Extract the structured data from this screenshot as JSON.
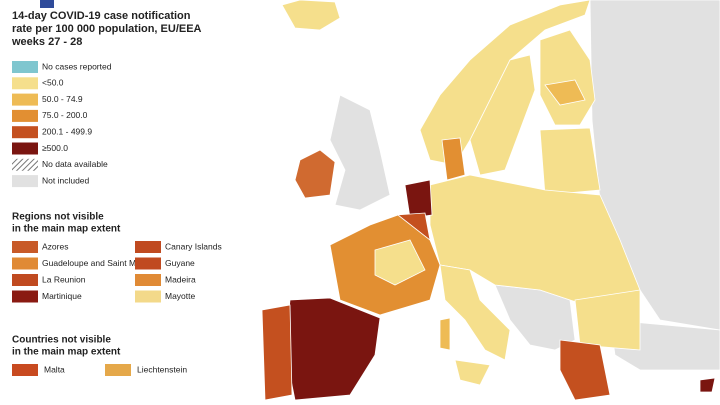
{
  "header": {
    "title_lines": [
      "14-day COVID-19 case notification",
      "rate per 100 000 population, EU/EEA",
      "weeks 27 - 28"
    ]
  },
  "legend": {
    "items": [
      {
        "label": "No cases reported",
        "color": "#7fc6cf"
      },
      {
        "label": "<50.0",
        "color": "#f5df8c"
      },
      {
        "label": "50.0 - 74.9",
        "color": "#eebb55"
      },
      {
        "label": "75.0 - 200.0",
        "color": "#e28f32"
      },
      {
        "label": "200.1 - 499.9",
        "color": "#c4501f"
      },
      {
        "label": "≥500.0",
        "color": "#7a1510"
      },
      {
        "label": "No data available",
        "color": "#999999",
        "pattern": "hatched"
      },
      {
        "label": "Not included",
        "color": "#e1e1e1"
      }
    ]
  },
  "regions": {
    "title_lines": [
      "Regions not visible",
      "in the main map extent"
    ],
    "items": [
      {
        "label": "Azores",
        "color": "#c85a28"
      },
      {
        "label": "Canary Islands",
        "color": "#c04a20"
      },
      {
        "label": "Guadeloupe and Saint Martin",
        "color": "#e08a35"
      },
      {
        "label": "Guyane",
        "color": "#c04a20"
      },
      {
        "label": "La Reunion",
        "color": "#c04a20"
      },
      {
        "label": "Madeira",
        "color": "#e08a35"
      },
      {
        "label": "Martinique",
        "color": "#8a1a12"
      },
      {
        "label": "Mayotte",
        "color": "#f3d98a"
      }
    ]
  },
  "countries": {
    "title_lines": [
      "Countries not visible",
      "in the main map extent"
    ],
    "items": [
      {
        "label": "Malta",
        "color": "#c84a20"
      },
      {
        "label": "Liechtenstein",
        "color": "#e5a84a"
      }
    ]
  }
}
